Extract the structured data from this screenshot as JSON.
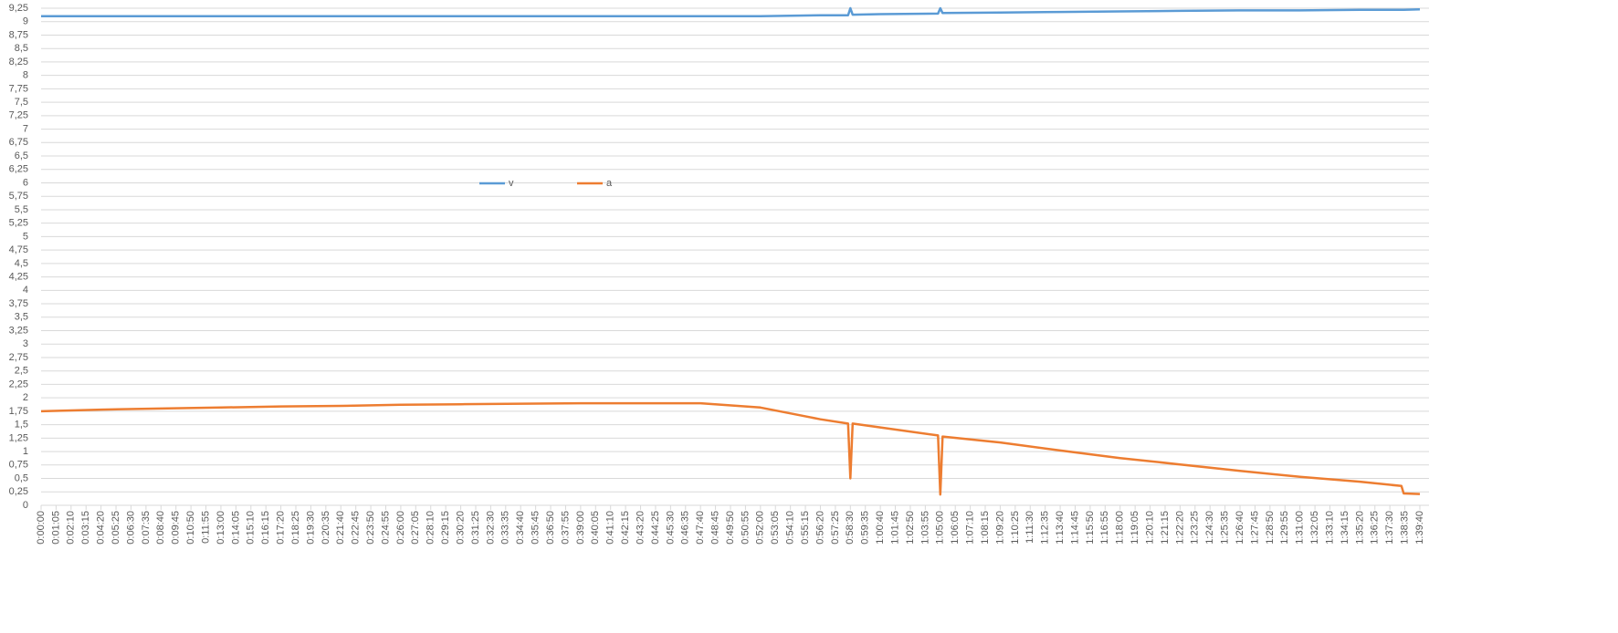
{
  "chart_data": {
    "type": "line",
    "x": [
      0,
      260,
      520,
      780,
      1040,
      1300,
      1560,
      1820,
      2080,
      2340,
      2600,
      2860,
      3120,
      3380,
      3500,
      3510,
      3520,
      3640,
      3890,
      3900,
      3910,
      4160,
      4420,
      4680,
      4940,
      5200,
      5460,
      5720,
      5900,
      5910,
      5980
    ],
    "series": [
      {
        "name": "v",
        "color": "#5b9bd5",
        "values": [
          9.1,
          9.1,
          9.1,
          9.1,
          9.1,
          9.1,
          9.1,
          9.1,
          9.1,
          9.1,
          9.1,
          9.1,
          9.1,
          9.12,
          9.12,
          9.25,
          9.13,
          9.14,
          9.15,
          9.25,
          9.16,
          9.17,
          9.18,
          9.19,
          9.2,
          9.21,
          9.21,
          9.22,
          9.22,
          9.22,
          9.23
        ]
      },
      {
        "name": "a",
        "color": "#ed7d31",
        "values": [
          1.75,
          1.78,
          1.8,
          1.82,
          1.84,
          1.85,
          1.87,
          1.88,
          1.89,
          1.9,
          1.9,
          1.9,
          1.82,
          1.6,
          1.52,
          0.5,
          1.52,
          1.45,
          1.3,
          0.2,
          1.28,
          1.17,
          1.02,
          0.88,
          0.76,
          0.64,
          0.53,
          0.44,
          0.36,
          0.22,
          0.21
        ]
      }
    ],
    "xlim": [
      0,
      5980
    ],
    "ylim": [
      0,
      9.25
    ],
    "grid": true,
    "legend": "top",
    "yticks": [
      0,
      {
        "value": 0.25,
        "label": "0,25"
      },
      {
        "value": 0.5,
        "label": "0,5"
      },
      {
        "value": 0.75,
        "label": "0,75"
      },
      1,
      {
        "value": 1.25,
        "label": "1,25"
      },
      {
        "value": 1.5,
        "label": "1,5"
      },
      {
        "value": 1.75,
        "label": "1,75"
      },
      2,
      {
        "value": 2.25,
        "label": "2,25"
      },
      {
        "value": 2.5,
        "label": "2,5"
      },
      {
        "value": 2.75,
        "label": "2,75"
      },
      3,
      {
        "value": 3.25,
        "label": "3,25"
      },
      {
        "value": 3.5,
        "label": "3,5"
      },
      {
        "value": 3.75,
        "label": "3,75"
      },
      4,
      {
        "value": 4.25,
        "label": "4,25"
      },
      {
        "value": 4.5,
        "label": "4,5"
      },
      {
        "value": 4.75,
        "label": "4,75"
      },
      5,
      {
        "value": 5.25,
        "label": "5,25"
      },
      {
        "value": 5.5,
        "label": "5,5"
      },
      {
        "value": 5.75,
        "label": "5,75"
      },
      6,
      {
        "value": 6.25,
        "label": "6,25"
      },
      {
        "value": 6.5,
        "label": "6,5"
      },
      {
        "value": 6.75,
        "label": "6,75"
      },
      7,
      {
        "value": 7.25,
        "label": "7,25"
      },
      {
        "value": 7.5,
        "label": "7,5"
      },
      {
        "value": 7.75,
        "label": "7,75"
      },
      8,
      {
        "value": 8.25,
        "label": "8,25"
      },
      {
        "value": 8.5,
        "label": "8,5"
      },
      {
        "value": 8.75,
        "label": "8,75"
      },
      9,
      {
        "value": 9.25,
        "label": "9,25"
      }
    ],
    "xticks": [
      {
        "value": 0,
        "label": "0:00:00"
      },
      {
        "value": 65,
        "label": "0:01:05"
      },
      {
        "value": 130,
        "label": "0:02:10"
      },
      {
        "value": 195,
        "label": "0:03:15"
      },
      {
        "value": 260,
        "label": "0:04:20"
      },
      {
        "value": 325,
        "label": "0:05:25"
      },
      {
        "value": 390,
        "label": "0:06:30"
      },
      {
        "value": 455,
        "label": "0:07:35"
      },
      {
        "value": 520,
        "label": "0:08:40"
      },
      {
        "value": 585,
        "label": "0:09:45"
      },
      {
        "value": 650,
        "label": "0:10:50"
      },
      {
        "value": 715,
        "label": "0:11:55"
      },
      {
        "value": 780,
        "label": "0:13:00"
      },
      {
        "value": 845,
        "label": "0:14:05"
      },
      {
        "value": 910,
        "label": "0:15:10"
      },
      {
        "value": 975,
        "label": "0:16:15"
      },
      {
        "value": 1040,
        "label": "0:17:20"
      },
      {
        "value": 1105,
        "label": "0:18:25"
      },
      {
        "value": 1170,
        "label": "0:19:30"
      },
      {
        "value": 1235,
        "label": "0:20:35"
      },
      {
        "value": 1300,
        "label": "0:21:40"
      },
      {
        "value": 1365,
        "label": "0:22:45"
      },
      {
        "value": 1430,
        "label": "0:23:50"
      },
      {
        "value": 1495,
        "label": "0:24:55"
      },
      {
        "value": 1560,
        "label": "0:26:00"
      },
      {
        "value": 1625,
        "label": "0:27:05"
      },
      {
        "value": 1690,
        "label": "0:28:10"
      },
      {
        "value": 1755,
        "label": "0:29:15"
      },
      {
        "value": 1820,
        "label": "0:30:20"
      },
      {
        "value": 1885,
        "label": "0:31:25"
      },
      {
        "value": 1950,
        "label": "0:32:30"
      },
      {
        "value": 2015,
        "label": "0:33:35"
      },
      {
        "value": 2080,
        "label": "0:34:40"
      },
      {
        "value": 2145,
        "label": "0:35:45"
      },
      {
        "value": 2210,
        "label": "0:36:50"
      },
      {
        "value": 2275,
        "label": "0:37:55"
      },
      {
        "value": 2340,
        "label": "0:39:00"
      },
      {
        "value": 2405,
        "label": "0:40:05"
      },
      {
        "value": 2470,
        "label": "0:41:10"
      },
      {
        "value": 2535,
        "label": "0:42:15"
      },
      {
        "value": 2600,
        "label": "0:43:20"
      },
      {
        "value": 2665,
        "label": "0:44:25"
      },
      {
        "value": 2730,
        "label": "0:45:30"
      },
      {
        "value": 2795,
        "label": "0:46:35"
      },
      {
        "value": 2860,
        "label": "0:47:40"
      },
      {
        "value": 2925,
        "label": "0:48:45"
      },
      {
        "value": 2990,
        "label": "0:49:50"
      },
      {
        "value": 3055,
        "label": "0:50:55"
      },
      {
        "value": 3120,
        "label": "0:52:00"
      },
      {
        "value": 3185,
        "label": "0:53:05"
      },
      {
        "value": 3250,
        "label": "0:54:10"
      },
      {
        "value": 3315,
        "label": "0:55:15"
      },
      {
        "value": 3380,
        "label": "0:56:20"
      },
      {
        "value": 3445,
        "label": "0:57:25"
      },
      {
        "value": 3510,
        "label": "0:58:30"
      },
      {
        "value": 3575,
        "label": "0:59:35"
      },
      {
        "value": 3640,
        "label": "1:00:40"
      },
      {
        "value": 3705,
        "label": "1:01:45"
      },
      {
        "value": 3770,
        "label": "1:02:50"
      },
      {
        "value": 3835,
        "label": "1:03:55"
      },
      {
        "value": 3900,
        "label": "1:05:00"
      },
      {
        "value": 3965,
        "label": "1:06:05"
      },
      {
        "value": 4030,
        "label": "1:07:10"
      },
      {
        "value": 4095,
        "label": "1:08:15"
      },
      {
        "value": 4160,
        "label": "1:09:20"
      },
      {
        "value": 4225,
        "label": "1:10:25"
      },
      {
        "value": 4290,
        "label": "1:11:30"
      },
      {
        "value": 4355,
        "label": "1:12:35"
      },
      {
        "value": 4420,
        "label": "1:13:40"
      },
      {
        "value": 4485,
        "label": "1:14:45"
      },
      {
        "value": 4550,
        "label": "1:15:50"
      },
      {
        "value": 4615,
        "label": "1:16:55"
      },
      {
        "value": 4680,
        "label": "1:18:00"
      },
      {
        "value": 4745,
        "label": "1:19:05"
      },
      {
        "value": 4810,
        "label": "1:20:10"
      },
      {
        "value": 4875,
        "label": "1:21:15"
      },
      {
        "value": 4940,
        "label": "1:22:20"
      },
      {
        "value": 5005,
        "label": "1:23:25"
      },
      {
        "value": 5070,
        "label": "1:24:30"
      },
      {
        "value": 5135,
        "label": "1:25:35"
      },
      {
        "value": 5200,
        "label": "1:26:40"
      },
      {
        "value": 5265,
        "label": "1:27:45"
      },
      {
        "value": 5330,
        "label": "1:28:50"
      },
      {
        "value": 5395,
        "label": "1:29:55"
      },
      {
        "value": 5460,
        "label": "1:31:00"
      },
      {
        "value": 5525,
        "label": "1:32:05"
      },
      {
        "value": 5590,
        "label": "1:33:10"
      },
      {
        "value": 5655,
        "label": "1:34:15"
      },
      {
        "value": 5720,
        "label": "1:35:20"
      },
      {
        "value": 5785,
        "label": "1:36:25"
      },
      {
        "value": 5850,
        "label": "1:37:30"
      },
      {
        "value": 5915,
        "label": "1:38:35"
      },
      {
        "value": 5980,
        "label": "1:39:40"
      }
    ]
  }
}
